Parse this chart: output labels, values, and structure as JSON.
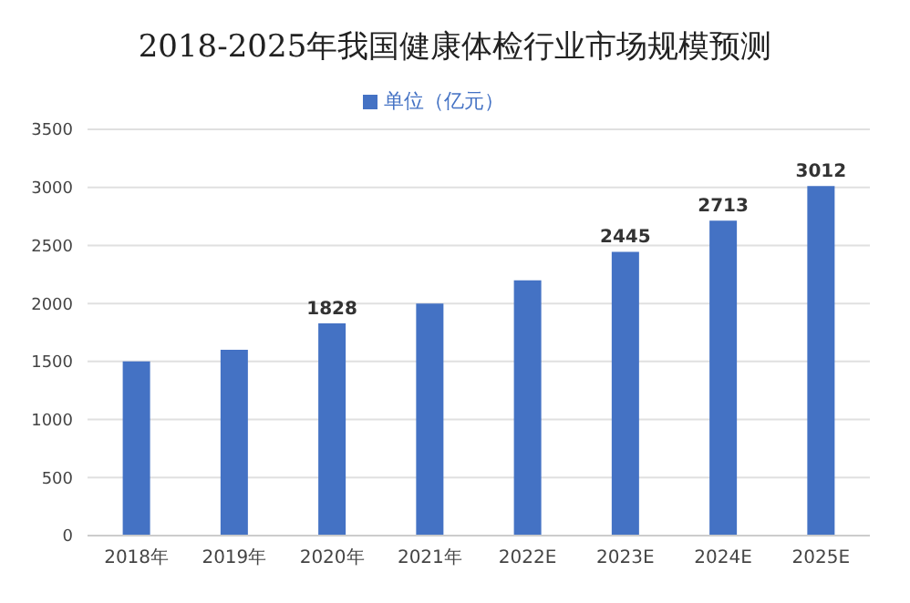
{
  "chart_data": {
    "type": "bar",
    "title": "2018-2025年我国健康体检行业市场规模预测",
    "categories": [
      "2018年",
      "2019年",
      "2020年",
      "2021年",
      "2022E",
      "2023E",
      "2024E",
      "2025E"
    ],
    "series": [
      {
        "name": "单位（亿元）",
        "color": "#4472c4",
        "values": [
          1500,
          1600,
          1828,
          2000,
          2200,
          2445,
          2713,
          3012
        ],
        "value_labels": [
          null,
          null,
          "1828",
          null,
          null,
          "2445",
          "2713",
          "3012"
        ]
      }
    ],
    "ylim": [
      0,
      3500
    ],
    "yticks": [
      0,
      500,
      1000,
      1500,
      2000,
      2500,
      3000,
      3500
    ],
    "grid": "y",
    "legend": "top"
  }
}
